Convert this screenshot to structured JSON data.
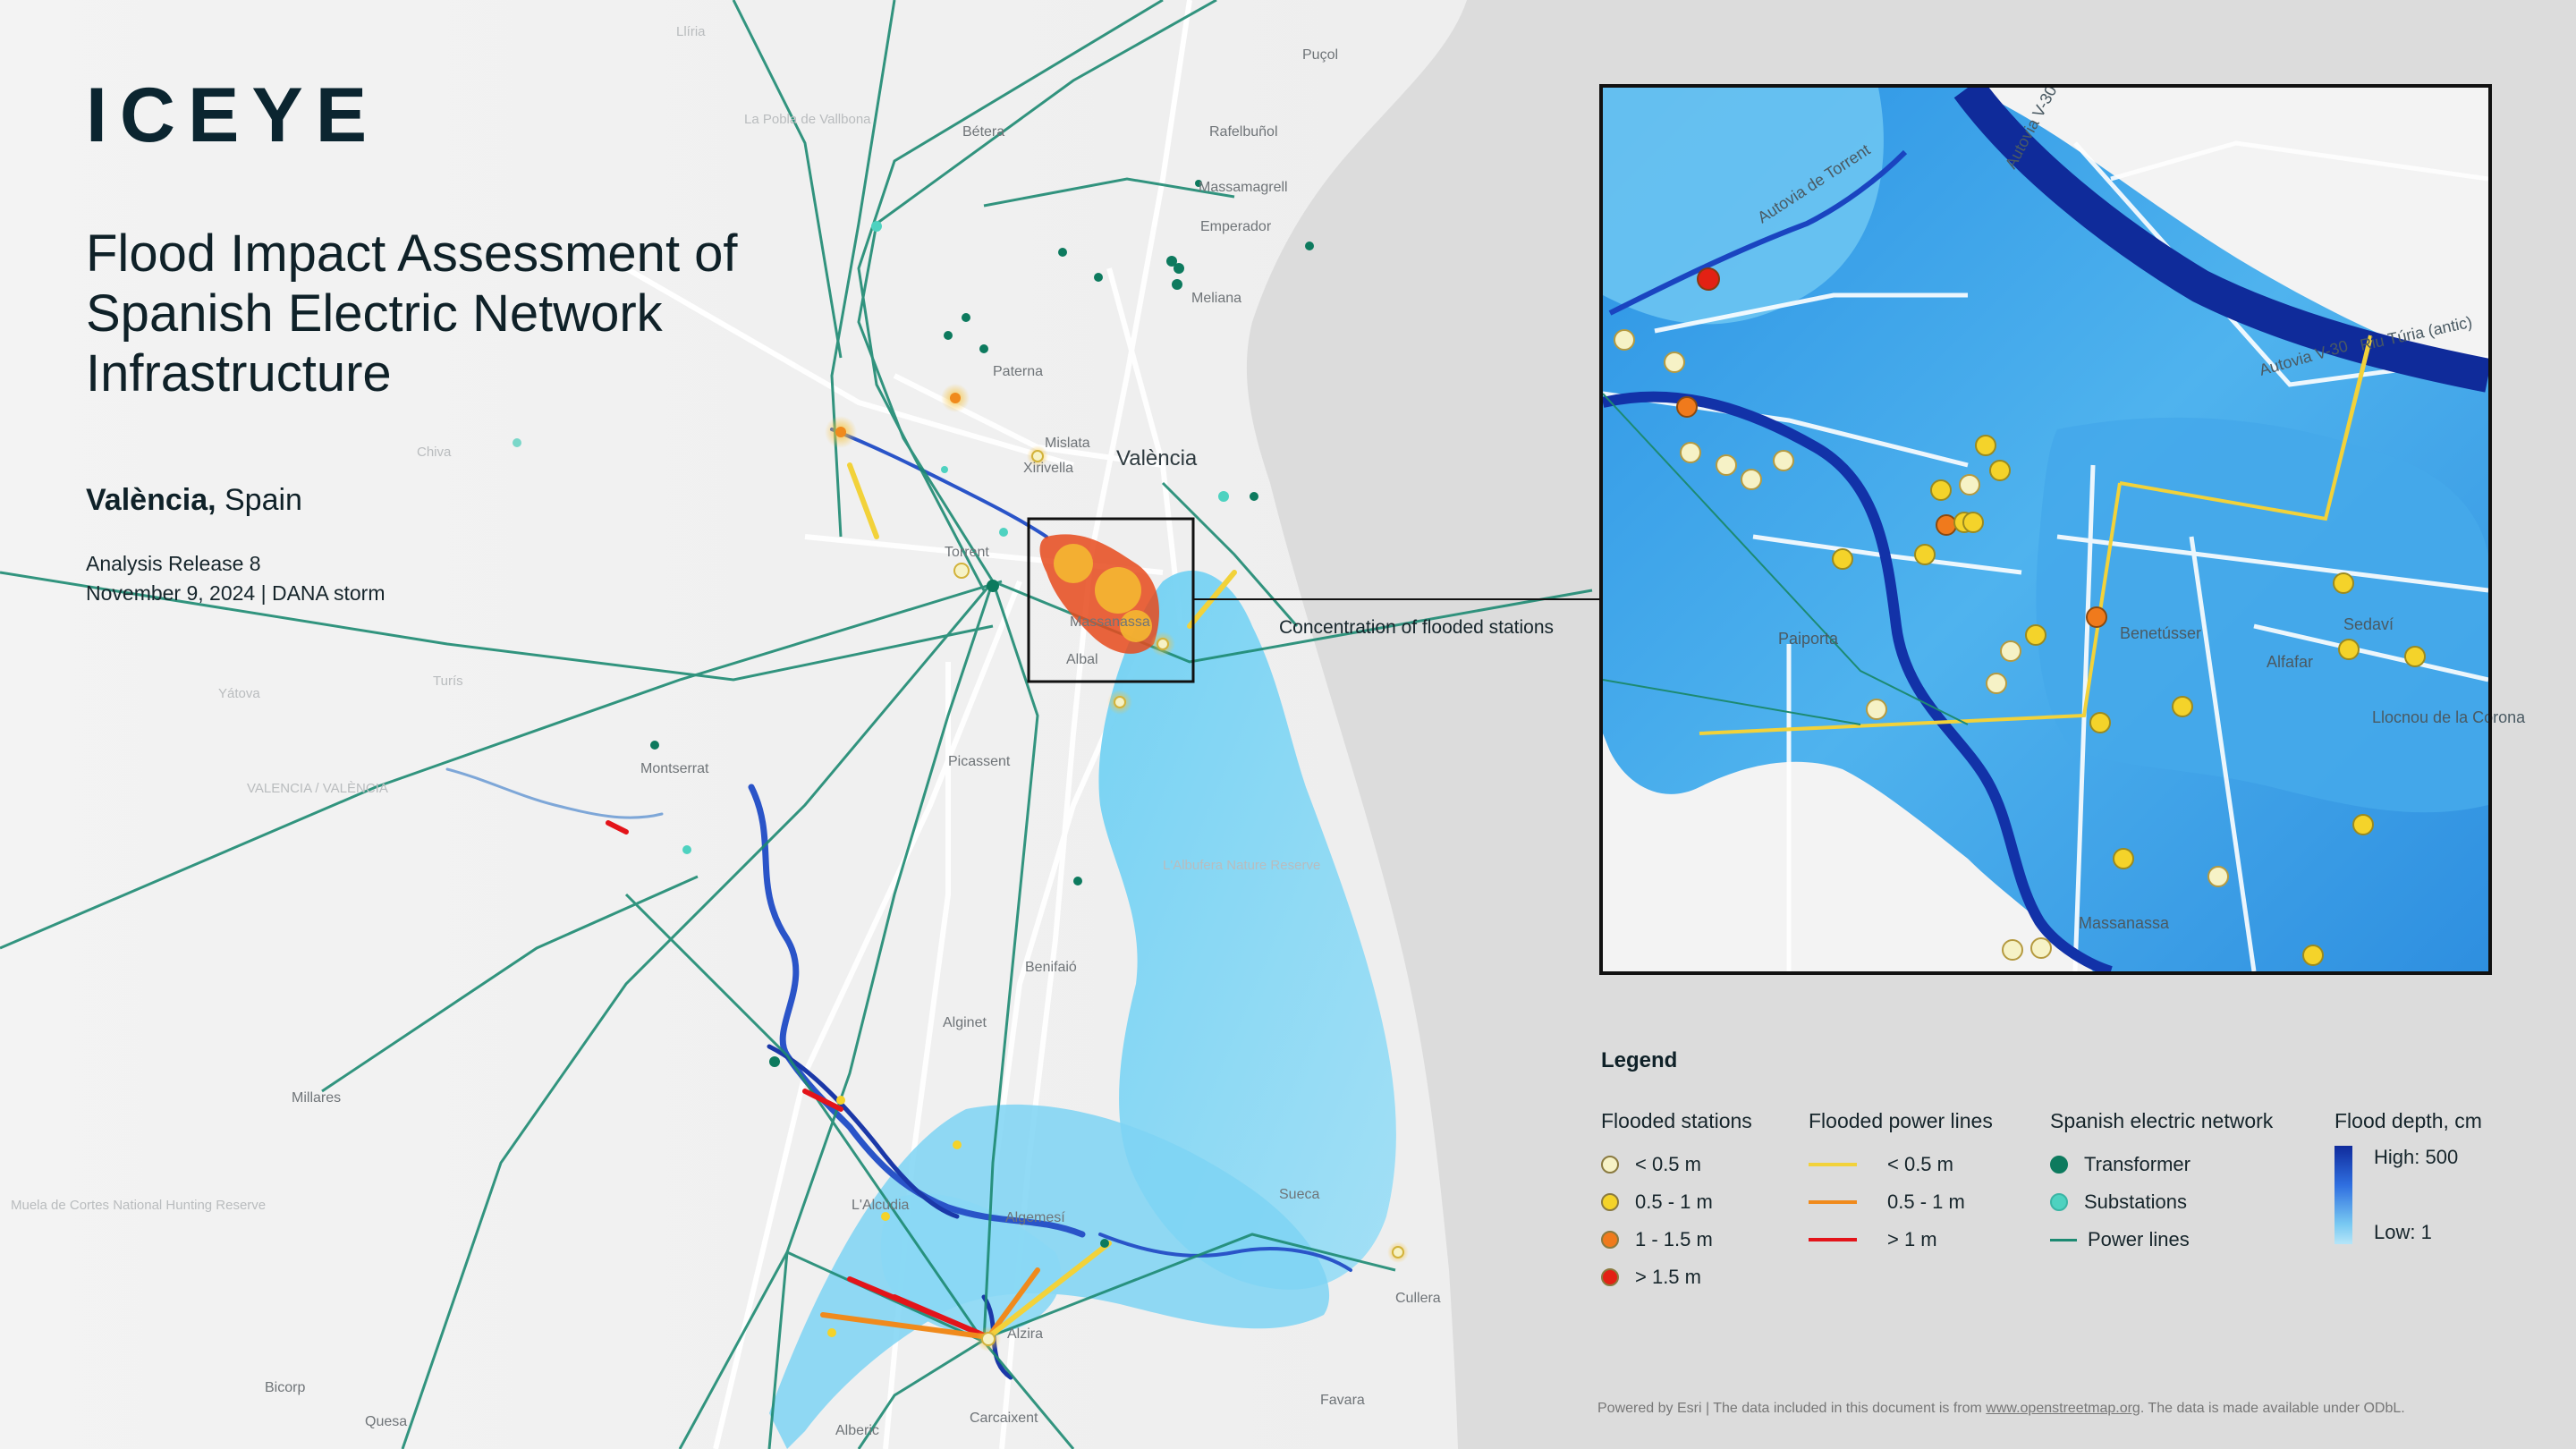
{
  "brand": "ICEYE",
  "title": "Flood Impact Assessment of Spanish Electric Network Infrastructure",
  "location": {
    "city": "València,",
    "region": " Spain"
  },
  "release": {
    "line1": "Analysis Release 8",
    "line2": "November 9, 2024  |  DANA storm"
  },
  "callout": "Concentration of flooded stations",
  "places": {
    "puzol": "Puçol",
    "betera": "Bétera",
    "rafelbunyol": "Rafelbuñol",
    "massamagrell": "Massamagrell",
    "emperador": "Emperador",
    "meliana": "Meliana",
    "paterna": "Paterna",
    "mislata": "Mislata",
    "xirivella": "Xirivella",
    "valencia": "València",
    "torrent": "Torrent",
    "massanassa": "Massanassa",
    "albal": "Albal",
    "picassent": "Picassent",
    "montserrat": "Montserrat",
    "benifaio": "Benifaió",
    "alginet": "Alginet",
    "millares": "Millares",
    "lalcudia": "L'Alcúdia",
    "algemesi": "Algemesí",
    "sueca": "Sueca",
    "cullera": "Cullera",
    "alzira": "Alzira",
    "carcaixent": "Carcaixent",
    "favara": "Favara",
    "bicorp": "Bicorp",
    "quesa": "Quesa",
    "alberic": "Alberic",
    "lliria": "Llíria",
    "pobla": "La Pobla de Vallbona",
    "chiva": "Chiva",
    "turis": "Turís",
    "yatova": "Yátova",
    "valencia_prov": "VALENCIA / VALÈNCIA",
    "albufera": "L'Albufera Nature Reserve",
    "muela": "Muela de Cortes National Hunting Reserve"
  },
  "inset_places": {
    "paiporta": "Paiporta",
    "benetusser": "Benetússer",
    "alfafar": "Alfafar",
    "sedavi": "Sedaví",
    "llocnou": "Llocnou de la Corona",
    "massanassa": "Massanassa",
    "autovia_torrent": "Autovia de Torrent",
    "autovia_v30": "Autovia V-30",
    "riu_turia": "Riu Túria (antic)"
  },
  "legend": {
    "title": "Legend",
    "stations": {
      "heading": "Flooded stations",
      "items": [
        {
          "label": "< 0.5 m",
          "color": "#f6f2c6"
        },
        {
          "label": "0.5  - 1 m",
          "color": "#f4d32a"
        },
        {
          "label": "1 - 1.5 m",
          "color": "#f07a1c"
        },
        {
          "label": "> 1.5 m",
          "color": "#e32114"
        }
      ]
    },
    "lines": {
      "heading": "Flooded power lines",
      "items": [
        {
          "label": "< 0.5 m",
          "color": "#f2d23a"
        },
        {
          "label": "0.5 - 1 m",
          "color": "#f08a1c"
        },
        {
          "label": "> 1 m",
          "color": "#e3141a"
        }
      ]
    },
    "network": {
      "heading": "Spanish electric network",
      "items": [
        {
          "label": "Transformer",
          "color": "#0d7a5e",
          "kind": "dot"
        },
        {
          "label": "Substations",
          "color": "#4ed2c0",
          "kind": "dot"
        },
        {
          "label": "Power lines",
          "color": "#1d8a72",
          "kind": "line"
        }
      ]
    },
    "depth": {
      "heading": "Flood depth, cm",
      "high": "High: 500",
      "low": "Low: 1",
      "color_high": "#102b9c",
      "color_low": "#b6e5f8"
    }
  },
  "footer": {
    "prefix": "Powered by Esri | The data included in this document is from ",
    "link": "www.openstreetmap.org",
    "suffix": ". The data is made available under ODbL."
  }
}
